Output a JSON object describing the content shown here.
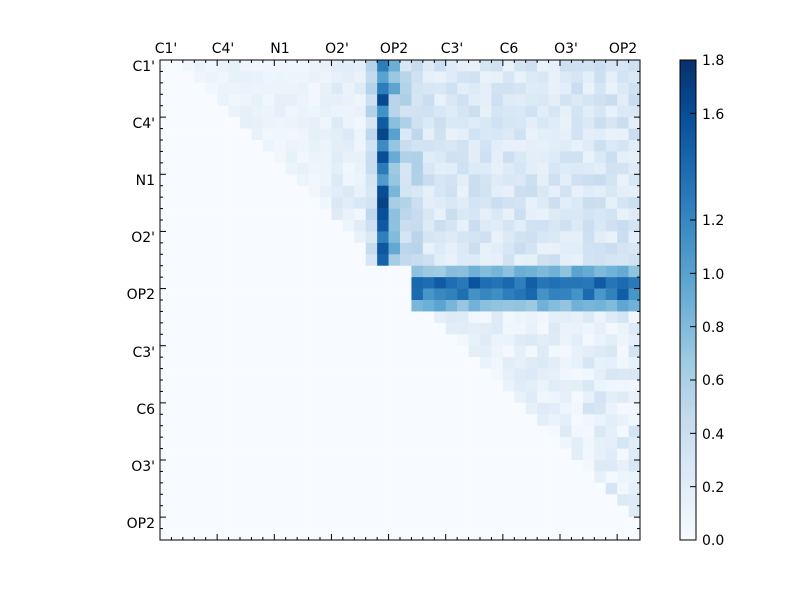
{
  "chart_data": {
    "type": "heatmap",
    "title": "",
    "xlabel": "",
    "ylabel": "",
    "x_tick_labels": [
      "C1'",
      "C4'",
      "N1",
      "O2'",
      "OP2",
      "C3'",
      "C6",
      "O3'",
      "OP2"
    ],
    "y_tick_labels": [
      "C1'",
      "C4'",
      "N1",
      "O2'",
      "OP2",
      "C3'",
      "C6",
      "O3'",
      "OP2"
    ],
    "x_tick_position": "top",
    "grid_size": 42,
    "colormap": "Blues",
    "colormap_stops": [
      "#f7fbff",
      "#deebf7",
      "#c6dbef",
      "#9ecae1",
      "#6baed6",
      "#4292c6",
      "#2171b5",
      "#08519c",
      "#08306b"
    ],
    "colorbar": {
      "min": 0.0,
      "max": 1.8,
      "tick_labels": [
        "0.0",
        "0.2",
        "0.4",
        "0.6",
        "0.8",
        "1.0",
        "1.2",
        "1.6",
        "1.8"
      ],
      "tick_values": [
        0.0,
        0.2,
        0.4,
        0.6,
        0.8,
        1.0,
        1.2,
        1.6,
        1.8
      ],
      "placement": "right"
    },
    "structure": {
      "nonzero_region": "upper-triangle",
      "bright_row_band": [
        18,
        21
      ],
      "bright_column_band": [
        18,
        22
      ],
      "high_column": 19,
      "high_row": 19
    }
  }
}
